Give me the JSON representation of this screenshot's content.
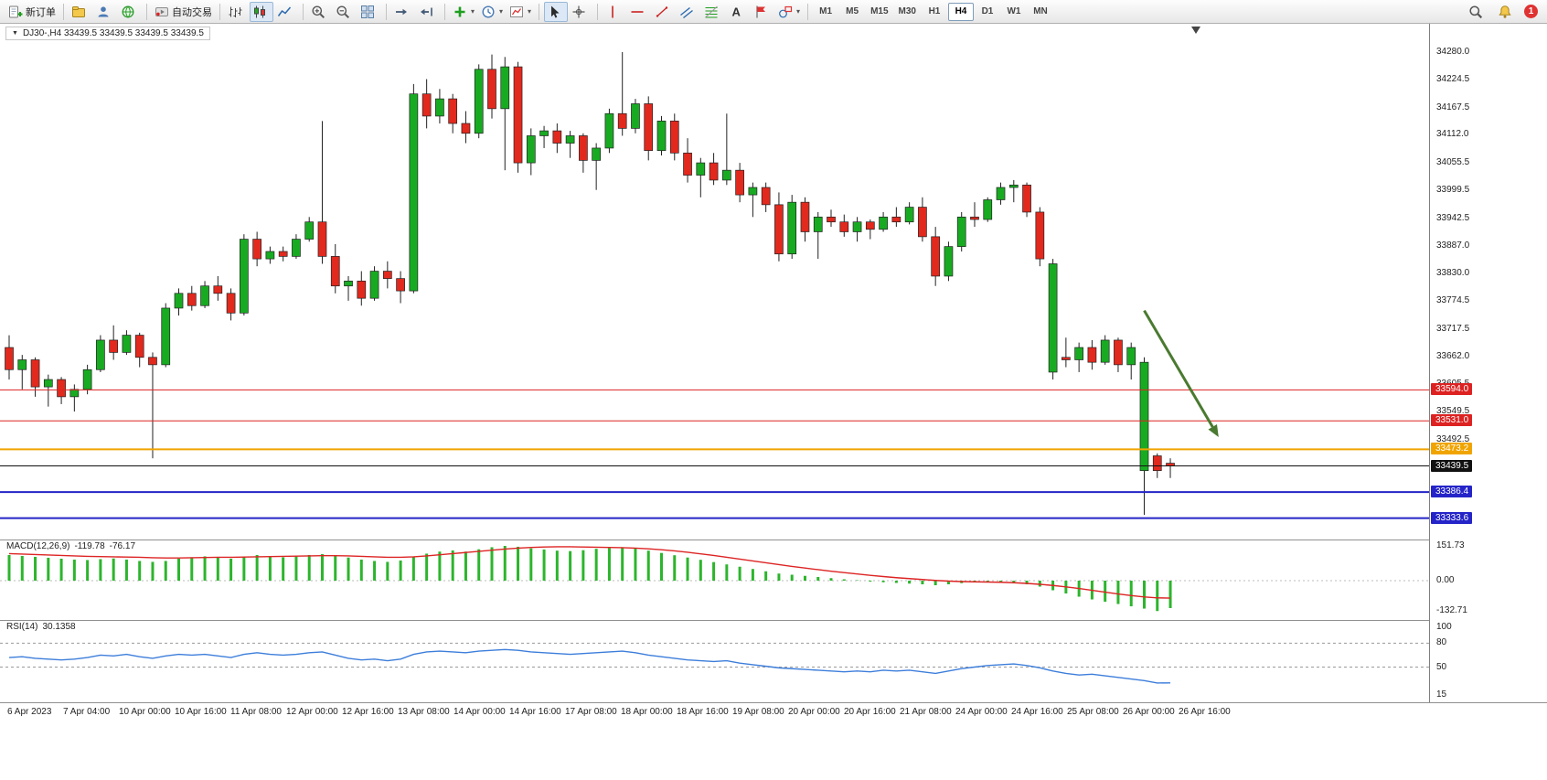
{
  "ui": {
    "caption": "DJ30-,H4 33439.5 33439.5 33439.5 33439.5",
    "toolbar": {
      "groups": [
        {
          "name": "trade",
          "items": [
            {
              "name": "new-order-button",
              "icon": "new-order",
              "label": "新订单"
            }
          ]
        },
        {
          "name": "services",
          "items": [
            {
              "name": "market-button",
              "icon": "market"
            },
            {
              "name": "profiles-button",
              "icon": "profile"
            },
            {
              "name": "community-button",
              "icon": "community"
            }
          ]
        },
        {
          "name": "experts",
          "items": [
            {
              "name": "auto-trading-button",
              "icon": "autotrade",
              "label": "自动交易"
            }
          ]
        },
        {
          "name": "chart-types",
          "items": [
            {
              "name": "bar-chart-button",
              "icon": "bar-chart"
            },
            {
              "name": "candlestick-chart-button",
              "icon": "candle-chart",
              "active": true
            },
            {
              "name": "line-chart-button",
              "icon": "line-chart"
            }
          ]
        },
        {
          "name": "zoom",
          "items": [
            {
              "name": "zoom-in-button",
              "icon": "zoom-in"
            },
            {
              "name": "zoom-out-button",
              "icon": "zoom-out"
            },
            {
              "name": "tile-windows-button",
              "icon": "tile-windows"
            }
          ]
        },
        {
          "name": "scroll",
          "items": [
            {
              "name": "auto-scroll-button",
              "icon": "auto-scroll"
            },
            {
              "name": "chart-shift-button",
              "icon": "chart-shift"
            }
          ]
        },
        {
          "name": "insert",
          "items": [
            {
              "name": "indicators-button",
              "icon": "indicators",
              "dropdown": true
            },
            {
              "name": "periods-button",
              "icon": "periods",
              "dropdown": true
            },
            {
              "name": "templates-button",
              "icon": "templates",
              "dropdown": true
            }
          ]
        },
        {
          "name": "pointer",
          "items": [
            {
              "name": "cursor-button",
              "icon": "cursor",
              "active": true
            },
            {
              "name": "crosshair-button",
              "icon": "crosshair"
            }
          ]
        },
        {
          "name": "objects",
          "items": [
            {
              "name": "vertical-line-button",
              "icon": "vline"
            },
            {
              "name": "horizontal-line-button",
              "icon": "hline"
            },
            {
              "name": "trendline-button",
              "icon": "trendline"
            },
            {
              "name": "channel-button",
              "icon": "channel"
            },
            {
              "name": "fibonacci-button",
              "icon": "fibonacci"
            },
            {
              "name": "text-button",
              "icon": "text"
            },
            {
              "name": "text-label-button",
              "icon": "label"
            },
            {
              "name": "shapes-button",
              "icon": "shapes",
              "dropdown": true
            }
          ]
        },
        {
          "name": "timeframes",
          "type": "timeframes",
          "items": [
            {
              "name": "timeframe-m1-button",
              "label": "M1"
            },
            {
              "name": "timeframe-m5-button",
              "label": "M5"
            },
            {
              "name": "timeframe-m15-button",
              "label": "M15"
            },
            {
              "name": "timeframe-m30-button",
              "label": "M30"
            },
            {
              "name": "timeframe-h1-button",
              "label": "H1"
            },
            {
              "name": "timeframe-h4-button",
              "label": "H4",
              "active": true
            },
            {
              "name": "timeframe-d1-button",
              "label": "D1"
            },
            {
              "name": "timeframe-w1-button",
              "label": "W1"
            },
            {
              "name": "timeframe-mn-button",
              "label": "MN"
            }
          ]
        }
      ],
      "right_items": [
        {
          "name": "search-button",
          "icon": "search"
        },
        {
          "name": "notifications-button",
          "icon": "bell"
        },
        {
          "name": "alerts-badge",
          "label": "1",
          "badge": true
        }
      ]
    }
  },
  "chart_data": {
    "type": "candlestick",
    "symbol": "DJ30-",
    "timeframe": "H4",
    "ohlc_quote": [
      "33439.5",
      "33439.5",
      "33439.5",
      "33439.5"
    ],
    "price_axis_ticks": [
      "34280.0",
      "34224.5",
      "34167.5",
      "34112.0",
      "34055.5",
      "33999.5",
      "33942.5",
      "33887.0",
      "33830.0",
      "33774.5",
      "33717.5",
      "33662.0",
      "33605.5",
      "33549.5",
      "33492.5"
    ],
    "time_axis_labels": [
      "6 Apr 2023",
      "7 Apr 04:00",
      "10 Apr 00:00",
      "10 Apr 16:00",
      "11 Apr 08:00",
      "12 Apr 00:00",
      "12 Apr 16:00",
      "13 Apr 08:00",
      "14 Apr 00:00",
      "14 Apr 16:00",
      "17 Apr 08:00",
      "18 Apr 00:00",
      "18 Apr 16:00",
      "19 Apr 08:00",
      "20 Apr 00:00",
      "20 Apr 16:00",
      "21 Apr 08:00",
      "24 Apr 00:00",
      "24 Apr 16:00",
      "25 Apr 08:00",
      "26 Apr 00:00",
      "26 Apr 16:00"
    ],
    "candles": [
      [
        33680,
        33705,
        33615,
        33635
      ],
      [
        33635,
        33665,
        33595,
        33655
      ],
      [
        33655,
        33660,
        33580,
        33600
      ],
      [
        33600,
        33625,
        33560,
        33615
      ],
      [
        33615,
        33620,
        33565,
        33580
      ],
      [
        33580,
        33605,
        33550,
        33595
      ],
      [
        33595,
        33645,
        33585,
        33635
      ],
      [
        33635,
        33705,
        33630,
        33695
      ],
      [
        33695,
        33725,
        33655,
        33670
      ],
      [
        33670,
        33715,
        33665,
        33705
      ],
      [
        33705,
        33710,
        33640,
        33660
      ],
      [
        33660,
        33670,
        33455,
        33645
      ],
      [
        33645,
        33770,
        33640,
        33760
      ],
      [
        33760,
        33800,
        33745,
        33790
      ],
      [
        33790,
        33805,
        33755,
        33765
      ],
      [
        33765,
        33815,
        33760,
        33805
      ],
      [
        33805,
        33825,
        33775,
        33790
      ],
      [
        33790,
        33800,
        33735,
        33750
      ],
      [
        33750,
        33910,
        33745,
        33900
      ],
      [
        33900,
        33915,
        33845,
        33860
      ],
      [
        33860,
        33885,
        33850,
        33875
      ],
      [
        33875,
        33885,
        33855,
        33865
      ],
      [
        33865,
        33910,
        33860,
        33900
      ],
      [
        33900,
        33945,
        33895,
        33935
      ],
      [
        33935,
        34140,
        33850,
        33865
      ],
      [
        33865,
        33890,
        33790,
        33805
      ],
      [
        33805,
        33825,
        33775,
        33815
      ],
      [
        33815,
        33835,
        33765,
        33780
      ],
      [
        33780,
        33845,
        33775,
        33835
      ],
      [
        33835,
        33855,
        33800,
        33820
      ],
      [
        33820,
        33835,
        33770,
        33795
      ],
      [
        33795,
        34215,
        33790,
        34195
      ],
      [
        34195,
        34225,
        34125,
        34150
      ],
      [
        34150,
        34205,
        34135,
        34185
      ],
      [
        34185,
        34195,
        34115,
        34135
      ],
      [
        34135,
        34160,
        34095,
        34115
      ],
      [
        34115,
        34255,
        34105,
        34245
      ],
      [
        34245,
        34275,
        34145,
        34165
      ],
      [
        34165,
        34270,
        34040,
        34250
      ],
      [
        34250,
        34260,
        34035,
        34055
      ],
      [
        34055,
        34125,
        34030,
        34110
      ],
      [
        34110,
        34130,
        34085,
        34120
      ],
      [
        34120,
        34135,
        34075,
        34095
      ],
      [
        34095,
        34120,
        34065,
        34110
      ],
      [
        34110,
        34115,
        34035,
        34060
      ],
      [
        34060,
        34095,
        34000,
        34085
      ],
      [
        34085,
        34165,
        34075,
        34155
      ],
      [
        34155,
        34280,
        34110,
        34125
      ],
      [
        34125,
        34185,
        34115,
        34175
      ],
      [
        34175,
        34190,
        34060,
        34080
      ],
      [
        34080,
        34150,
        34070,
        34140
      ],
      [
        34140,
        34155,
        34060,
        34075
      ],
      [
        34075,
        34105,
        34015,
        34030
      ],
      [
        34030,
        34065,
        33985,
        34055
      ],
      [
        34055,
        34075,
        34010,
        34020
      ],
      [
        34020,
        34155,
        34010,
        34040
      ],
      [
        34040,
        34055,
        33975,
        33990
      ],
      [
        33990,
        34015,
        33945,
        34005
      ],
      [
        34005,
        34015,
        33955,
        33970
      ],
      [
        33970,
        33995,
        33855,
        33870
      ],
      [
        33870,
        33990,
        33860,
        33975
      ],
      [
        33975,
        33985,
        33895,
        33915
      ],
      [
        33915,
        33955,
        33860,
        33945
      ],
      [
        33945,
        33960,
        33925,
        33935
      ],
      [
        33935,
        33950,
        33905,
        33915
      ],
      [
        33915,
        33945,
        33895,
        33935
      ],
      [
        33935,
        33940,
        33900,
        33920
      ],
      [
        33920,
        33955,
        33915,
        33945
      ],
      [
        33945,
        33965,
        33925,
        33935
      ],
      [
        33935,
        33975,
        33930,
        33965
      ],
      [
        33965,
        33985,
        33895,
        33905
      ],
      [
        33905,
        33925,
        33805,
        33825
      ],
      [
        33825,
        33895,
        33815,
        33885
      ],
      [
        33885,
        33955,
        33875,
        33945
      ],
      [
        33945,
        33975,
        33925,
        33940
      ],
      [
        33940,
        33985,
        33935,
        33980
      ],
      [
        33980,
        34015,
        33970,
        34005
      ],
      [
        34005,
        34020,
        33975,
        34010
      ],
      [
        34010,
        34015,
        33945,
        33955
      ],
      [
        33955,
        33965,
        33845,
        33860
      ],
      [
        33630,
        33860,
        33615,
        33850
      ],
      [
        33660,
        33700,
        33640,
        33655
      ],
      [
        33655,
        33690,
        33630,
        33680
      ],
      [
        33680,
        33695,
        33635,
        33650
      ],
      [
        33650,
        33705,
        33645,
        33695
      ],
      [
        33695,
        33700,
        33630,
        33645
      ],
      [
        33645,
        33690,
        33615,
        33680
      ],
      [
        33430,
        33660,
        33340,
        33650
      ],
      [
        33460,
        33465,
        33415,
        33430
      ],
      [
        33445,
        33455,
        33415,
        33439.5
      ]
    ],
    "horizontal_lines": [
      {
        "price": 33594.0,
        "label": "33594.0",
        "color": "#dd2222",
        "width": 1
      },
      {
        "price": 33531.0,
        "label": "33531.0",
        "color": "#dd2222",
        "width": 1
      },
      {
        "price": 33473.2,
        "label": "33473.2",
        "color": "#f0a400",
        "width": 2
      },
      {
        "price": 33439.5,
        "label": "33439.5",
        "color": "#111111",
        "width": 1
      },
      {
        "price": 33386.4,
        "label": "33386.4",
        "color": "#2424c8",
        "width": 2
      },
      {
        "price": 33333.6,
        "label": "33333.6",
        "color": "#2424c8",
        "width": 2
      }
    ],
    "trend_arrow": {
      "from_bar": 87,
      "from_price": 33755,
      "to_bar": 92.7,
      "to_price": 33498,
      "color": "#4a7a30",
      "width": 3
    },
    "indicators": [
      {
        "type": "macd",
        "label": "MACD(12,26,9)",
        "main_value": "-119.78",
        "signal_value": "-76.17",
        "axis_labels": [
          "151.73",
          "0.00",
          "-132.71"
        ],
        "axis_values": [
          151.73,
          0,
          -132.71
        ],
        "histogram": [
          112,
          108,
          104,
          100,
          96,
          92,
          90,
          94,
          97,
          92,
          86,
          82,
          86,
          96,
          102,
          106,
          101,
          96,
          102,
          112,
          107,
          102,
          107,
          112,
          116,
          110,
          101,
          92,
          86,
          82,
          88,
          103,
          118,
          127,
          132,
          127,
          137,
          146,
          151.73,
          148,
          141,
          136,
          131,
          129,
          133,
          139,
          143,
          146,
          141,
          131,
          121,
          111,
          101,
          91,
          81,
          71,
          61,
          51,
          41,
          31,
          26,
          21,
          16,
          11,
          6,
          2,
          -4,
          -7,
          -10,
          -13,
          -16,
          -20,
          -16,
          -11,
          -8,
          -6,
          -9,
          -12,
          -16,
          -26,
          -42,
          -56,
          -70,
          -82,
          -92,
          -102,
          -112,
          -122,
          -132.71,
          -119.78
        ],
        "signal": [
          118,
          116,
          114,
          112,
          110,
          108,
          106,
          105,
          104,
          103,
          102,
          100,
          99,
          99,
          100,
          101,
          102,
          102,
          103,
          104,
          105,
          106,
          107,
          108,
          109,
          109,
          108,
          106,
          104,
          102,
          102,
          104,
          108,
          113,
          118,
          123,
          128,
          133,
          138,
          142,
          145,
          147,
          148,
          148,
          147,
          146,
          145,
          144,
          142,
          139,
          135,
          130,
          124,
          117,
          110,
          102,
          94,
          86,
          78,
          70,
          62,
          55,
          48,
          41,
          35,
          29,
          23,
          18,
          13,
          9,
          5,
          1,
          -2,
          -4,
          -5,
          -6,
          -7,
          -9,
          -12,
          -16,
          -21,
          -27,
          -34,
          -42,
          -50,
          -58,
          -65,
          -71,
          -75,
          -76.17
        ]
      },
      {
        "type": "rsi",
        "label": "RSI(14)",
        "value": "30.1358",
        "axis_labels": [
          "100",
          "80",
          "50",
          "15"
        ],
        "axis_values": [
          100,
          80,
          50,
          15
        ],
        "levels": [
          80,
          50
        ],
        "values": [
          62,
          63,
          61,
          60,
          59,
          60,
          62,
          65,
          64,
          66,
          63,
          61,
          64,
          66,
          65,
          66,
          64,
          62,
          66,
          68,
          66,
          65,
          66,
          68,
          69,
          65,
          61,
          59,
          60,
          58,
          60,
          66,
          69,
          70,
          69,
          68,
          70,
          71,
          72,
          71,
          69,
          68,
          67,
          66,
          67,
          68,
          69,
          70,
          68,
          65,
          63,
          61,
          59,
          58,
          57,
          58,
          55,
          53,
          51,
          49,
          48,
          47,
          46,
          45,
          44,
          45,
          44,
          46,
          45,
          46,
          44,
          42,
          45,
          48,
          50,
          52,
          53,
          54,
          52,
          49,
          45,
          42,
          40,
          41,
          39,
          37,
          35,
          33,
          30,
          30.14
        ]
      }
    ],
    "colors": {
      "bull": "#18ab22",
      "bear": "#e2291e",
      "wick": "#222222",
      "macd_hist": "#2cb52c",
      "macd_signal": "#dd2424",
      "rsi_line": "#3d7edb"
    }
  }
}
